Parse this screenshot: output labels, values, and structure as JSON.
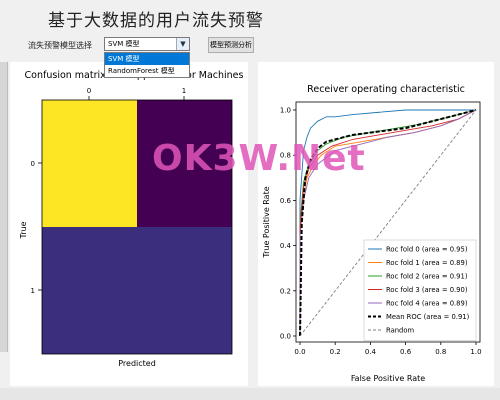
{
  "app": {
    "title": "基于大数据的用户流失预警"
  },
  "toolbar": {
    "model_select_label": "流失预警模型选择",
    "model_select_value": "SVM 模型",
    "model_options": [
      "SVM 模型",
      "RandomForest 模型"
    ],
    "analyze_button": "模型预测分析"
  },
  "confusion": {
    "title": "Confusion matrix for Support Vector Machines",
    "x_ticks": [
      "0",
      "1"
    ],
    "y_ticks": [
      "0",
      "1"
    ],
    "xlabel": "Predicted",
    "ylabel": "True",
    "colors": [
      "#fde725",
      "#440154",
      "#3b2f7d",
      "#3b2f7d"
    ]
  },
  "watermark": "OK3W.Net",
  "chart_data": {
    "type": "line",
    "title": "Receiver operating characteristic",
    "xlabel": "False Positive Rate",
    "ylabel": "True Positive Rate",
    "xlim": [
      0,
      1
    ],
    "ylim": [
      0,
      1
    ],
    "xticks": [
      "0.0",
      "0.2",
      "0.4",
      "0.6",
      "0.8",
      "1.0"
    ],
    "yticks": [
      "0.0",
      "0.2",
      "0.4",
      "0.6",
      "0.8",
      "1.0"
    ],
    "legend_position": "lower-right",
    "series": [
      {
        "name": "Roc fold 0 (area = 0.95)",
        "color": "#1f77b4",
        "x": [
          0,
          0,
          0.02,
          0.04,
          0.06,
          0.1,
          0.15,
          0.2,
          0.3,
          0.45,
          0.6,
          0.75,
          0.9,
          1.0
        ],
        "y": [
          0,
          0.6,
          0.82,
          0.88,
          0.92,
          0.95,
          0.97,
          0.97,
          0.98,
          0.99,
          1.0,
          1.0,
          1.0,
          1.0
        ]
      },
      {
        "name": "Roc fold 1 (area = 0.89)",
        "color": "#ff7f0e",
        "x": [
          0,
          0,
          0.02,
          0.04,
          0.08,
          0.12,
          0.2,
          0.35,
          0.5,
          0.65,
          0.8,
          0.9,
          1.0
        ],
        "y": [
          0,
          0.45,
          0.62,
          0.7,
          0.76,
          0.8,
          0.84,
          0.86,
          0.88,
          0.9,
          0.93,
          0.96,
          1.0
        ]
      },
      {
        "name": "Roc fold 2 (area = 0.91)",
        "color": "#2ca02c",
        "x": [
          0,
          0,
          0.02,
          0.05,
          0.1,
          0.15,
          0.25,
          0.4,
          0.55,
          0.7,
          0.85,
          1.0
        ],
        "y": [
          0,
          0.5,
          0.68,
          0.76,
          0.82,
          0.85,
          0.88,
          0.9,
          0.92,
          0.94,
          0.97,
          1.0
        ]
      },
      {
        "name": "Roc fold 3 (area = 0.90)",
        "color": "#d62728",
        "x": [
          0,
          0,
          0.02,
          0.05,
          0.1,
          0.18,
          0.3,
          0.45,
          0.6,
          0.75,
          0.9,
          1.0
        ],
        "y": [
          0,
          0.48,
          0.66,
          0.74,
          0.8,
          0.84,
          0.87,
          0.89,
          0.91,
          0.93,
          0.96,
          1.0
        ]
      },
      {
        "name": "Roc fold 4 (area = 0.89)",
        "color": "#9467bd",
        "x": [
          0,
          0,
          0.02,
          0.05,
          0.1,
          0.2,
          0.35,
          0.5,
          0.65,
          0.8,
          0.9,
          1.0
        ],
        "y": [
          0,
          0.44,
          0.6,
          0.7,
          0.76,
          0.82,
          0.85,
          0.88,
          0.9,
          0.93,
          0.96,
          1.0
        ]
      },
      {
        "name": "Mean ROC (area = 0.91)",
        "color": "#000000",
        "dashed": true,
        "bold": true,
        "x": [
          0,
          0.01,
          0.03,
          0.06,
          0.1,
          0.15,
          0.2,
          0.3,
          0.4,
          0.5,
          0.6,
          0.7,
          0.8,
          0.9,
          1.0
        ],
        "y": [
          0,
          0.5,
          0.7,
          0.78,
          0.83,
          0.86,
          0.87,
          0.89,
          0.9,
          0.91,
          0.92,
          0.94,
          0.96,
          0.98,
          1.0
        ]
      },
      {
        "name": "Random",
        "color": "#7f7f7f",
        "dashed": true,
        "x": [
          0,
          1
        ],
        "y": [
          0,
          1
        ]
      }
    ]
  }
}
